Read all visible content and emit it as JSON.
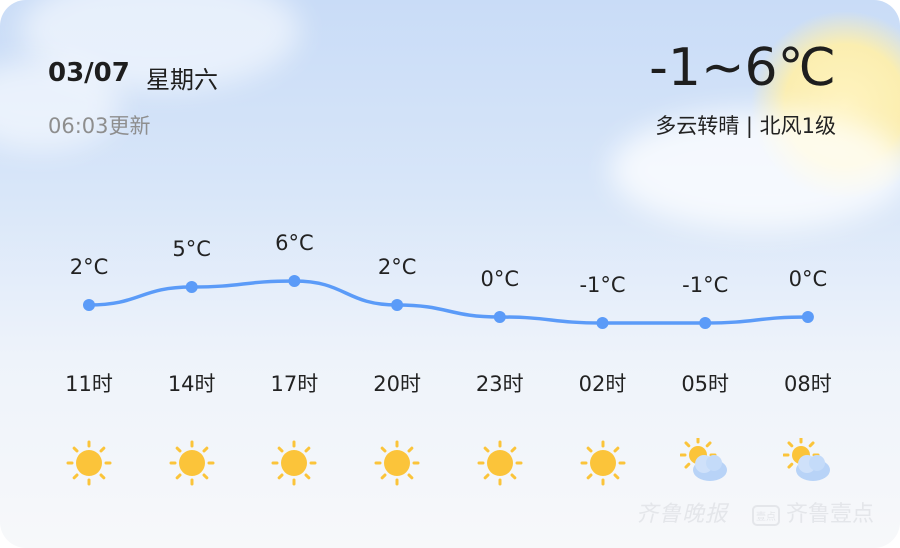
{
  "header": {
    "date": "03/07",
    "weekday": "星期六",
    "updated": "06:03更新",
    "temp_range": "-1~6℃",
    "description": "多云转晴 | 北风1级"
  },
  "hourly": [
    {
      "time": "11时",
      "temp": 2,
      "label": "2°C",
      "icon": "sunny-icon"
    },
    {
      "time": "14时",
      "temp": 5,
      "label": "5°C",
      "icon": "sunny-icon"
    },
    {
      "time": "17时",
      "temp": 6,
      "label": "6°C",
      "icon": "sunny-icon"
    },
    {
      "time": "20时",
      "temp": 2,
      "label": "2°C",
      "icon": "sunny-icon"
    },
    {
      "time": "23时",
      "temp": 0,
      "label": "0°C",
      "icon": "sunny-icon"
    },
    {
      "time": "02时",
      "temp": -1,
      "label": "-1°C",
      "icon": "sunny-icon"
    },
    {
      "time": "05时",
      "temp": -1,
      "label": "-1°C",
      "icon": "partly-cloudy-icon"
    },
    {
      "time": "08时",
      "temp": 0,
      "label": "0°C",
      "icon": "partly-cloudy-icon"
    }
  ],
  "colors": {
    "line": "#5b9bf8",
    "sun": "#fbc43a"
  },
  "watermark": {
    "brand1": "齐鲁晚报",
    "brand2": "齐鲁壹点",
    "badge": "壹点"
  }
}
